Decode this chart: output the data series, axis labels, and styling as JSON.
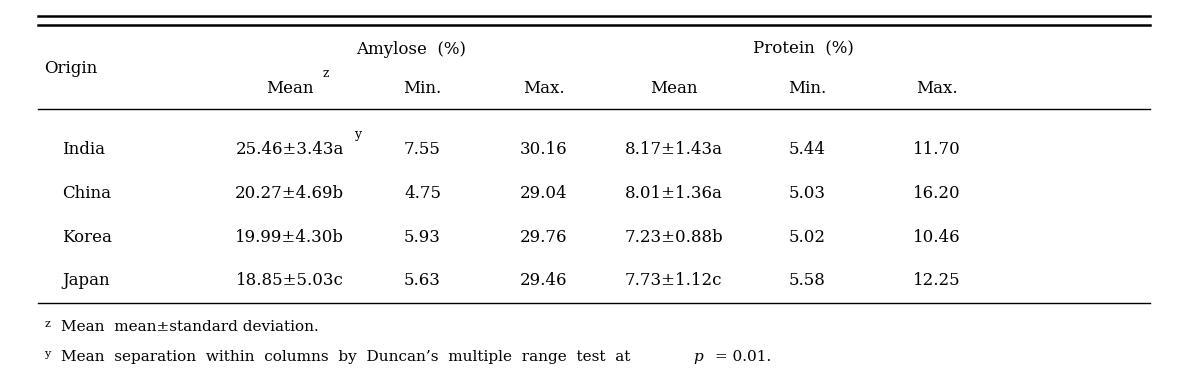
{
  "amylose_label": "Amylose  (%)",
  "protein_label": "Protein  (%)",
  "origin_label": "Origin",
  "col_headers": [
    "Mean",
    "Min.",
    "Max.",
    "Mean",
    "Min.",
    "Max."
  ],
  "rows": [
    [
      "India",
      "25.46±3.43a",
      "y",
      "7.55",
      "30.16",
      "8.17±1.43a",
      "5.44",
      "11.70"
    ],
    [
      "China",
      "20.27±4.69b",
      "",
      "4.75",
      "29.04",
      "8.01±1.36a",
      "5.03",
      "16.20"
    ],
    [
      "Korea",
      "19.99±4.30b",
      "",
      "5.93",
      "29.76",
      "7.23±0.88b",
      "5.02",
      "10.46"
    ],
    [
      "Japan",
      "18.85±5.03c",
      "",
      "5.63",
      "29.46",
      "7.73±1.12c",
      "5.58",
      "12.25"
    ]
  ],
  "footnote1_super": "z",
  "footnote1_text": "Mean  mean±standard deviation.",
  "footnote2_super": "y",
  "footnote2_text": "Mean  separation  within  columns  by  Duncan’s  multiple  range  test  at ",
  "footnote2_p": "p",
  "footnote2_end": " = 0.01.",
  "bg_color": "#ffffff",
  "text_color": "#000000",
  "line_color": "#000000",
  "font_size": 12,
  "footnote_font_size": 11
}
